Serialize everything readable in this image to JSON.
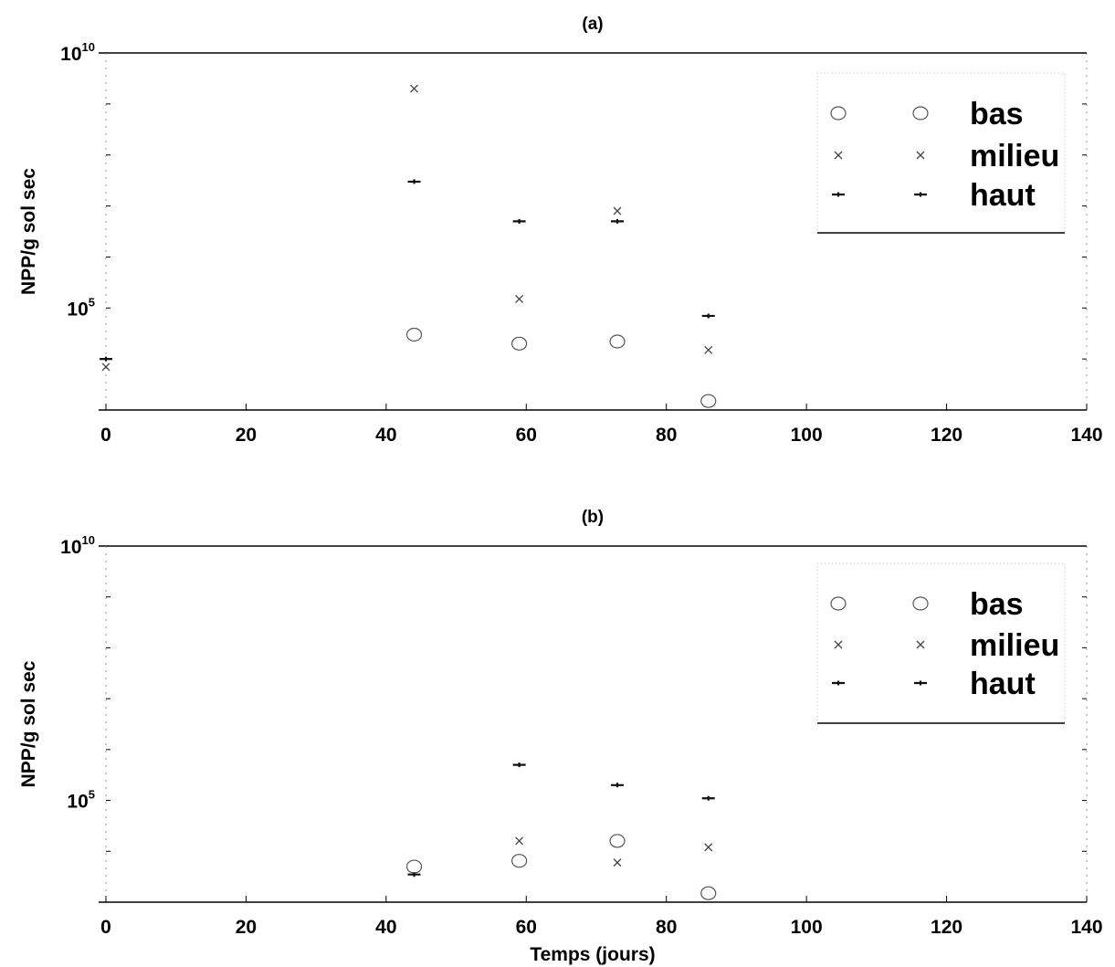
{
  "chart_data": [
    {
      "type": "scatter",
      "title": "(a)",
      "xlabel": "",
      "ylabel": "NPP/g sol sec",
      "xlim": [
        0,
        140
      ],
      "x_ticks": [
        "0",
        "20",
        "40",
        "60",
        "80",
        "100",
        "120",
        "140"
      ],
      "y_scale": "log",
      "ylim": [
        1000,
        10000000000
      ],
      "y_tick_labels": [
        {
          "base": "10",
          "exp": "10",
          "value": 10000000000
        },
        {
          "base": "10",
          "exp": "5",
          "value": 100000
        }
      ],
      "legend_position": "top-right",
      "series": [
        {
          "name": "bas",
          "marker": "circle",
          "points": [
            [
              44,
              30000
            ],
            [
              59,
              20000
            ],
            [
              73,
              22000
            ],
            [
              86,
              1500
            ]
          ]
        },
        {
          "name": "milieu",
          "marker": "x",
          "points": [
            [
              44,
              2000000000
            ],
            [
              59,
              150000
            ],
            [
              73,
              8000000
            ],
            [
              86,
              15000
            ],
            [
              0,
              7000
            ]
          ]
        },
        {
          "name": "haut",
          "marker": "plus",
          "points": [
            [
              44,
              30000000
            ],
            [
              59,
              5000000
            ],
            [
              73,
              5000000
            ],
            [
              86,
              70000
            ],
            [
              0,
              10000
            ]
          ]
        }
      ]
    },
    {
      "type": "scatter",
      "title": "(b)",
      "xlabel": "Temps (jours)",
      "ylabel": "NPP/g sol sec",
      "xlim": [
        0,
        140
      ],
      "x_ticks": [
        "0",
        "20",
        "40",
        "60",
        "80",
        "100",
        "120",
        "140"
      ],
      "y_scale": "log",
      "ylim": [
        1000,
        10000000000
      ],
      "y_tick_labels": [
        {
          "base": "10",
          "exp": "10",
          "value": 10000000000
        },
        {
          "base": "10",
          "exp": "5",
          "value": 100000
        }
      ],
      "legend_position": "top-right",
      "series": [
        {
          "name": "bas",
          "marker": "circle",
          "points": [
            [
              44,
              5000
            ],
            [
              59,
              6500
            ],
            [
              73,
              16000
            ],
            [
              86,
              1500
            ]
          ]
        },
        {
          "name": "milieu",
          "marker": "x",
          "points": [
            [
              59,
              16000
            ],
            [
              73,
              6000
            ],
            [
              86,
              12000
            ]
          ]
        },
        {
          "name": "haut",
          "marker": "plus",
          "points": [
            [
              44,
              3500
            ],
            [
              59,
              500000
            ],
            [
              73,
              200000
            ],
            [
              86,
              110000
            ]
          ]
        }
      ]
    }
  ]
}
